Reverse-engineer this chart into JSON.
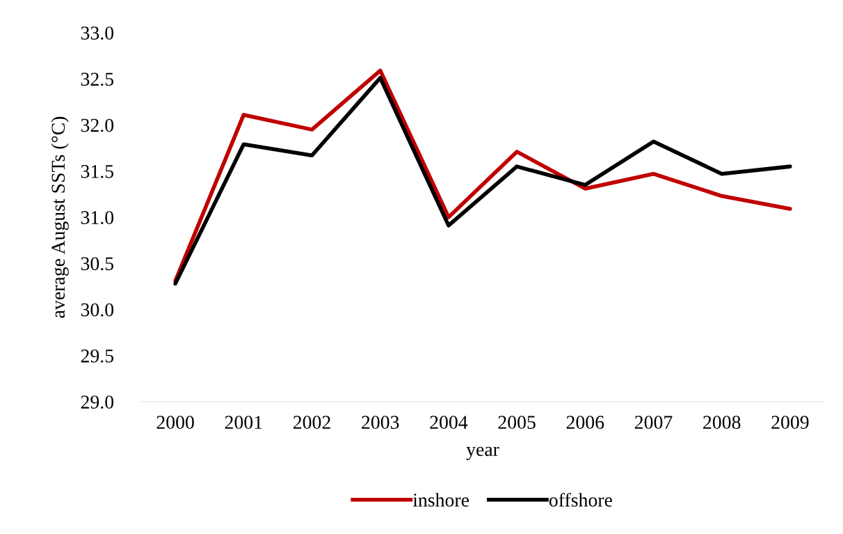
{
  "chart_data": {
    "type": "line",
    "xlabel": "year",
    "ylabel": "average August SSTs (°C)",
    "categories": [
      "2000",
      "2001",
      "2002",
      "2003",
      "2004",
      "2005",
      "2006",
      "2007",
      "2008",
      "2009"
    ],
    "series": [
      {
        "name": "inshore",
        "color": "#c00000",
        "values": [
          30.31,
          32.11,
          31.95,
          32.59,
          31.0,
          31.71,
          31.31,
          31.47,
          31.23,
          31.09
        ]
      },
      {
        "name": "offshore",
        "color": "#000000",
        "values": [
          30.28,
          31.79,
          31.67,
          32.51,
          30.91,
          31.55,
          31.35,
          31.82,
          31.47,
          31.55
        ]
      }
    ],
    "ylim": [
      29,
      33
    ],
    "yticks": [
      {
        "value": 29,
        "label": "29.0"
      },
      {
        "value": 29.5,
        "label": "29.5"
      },
      {
        "value": 30,
        "label": "30.0"
      },
      {
        "value": 30.5,
        "label": "30.5"
      },
      {
        "value": 31,
        "label": "31.0"
      },
      {
        "value": 31.5,
        "label": "31.5"
      },
      {
        "value": 32,
        "label": "32.0"
      },
      {
        "value": 32.5,
        "label": "32.5"
      },
      {
        "value": 33,
        "label": "33.0"
      }
    ],
    "grid": false,
    "legend": "bottom",
    "marker": "none",
    "line_style": "solid"
  }
}
